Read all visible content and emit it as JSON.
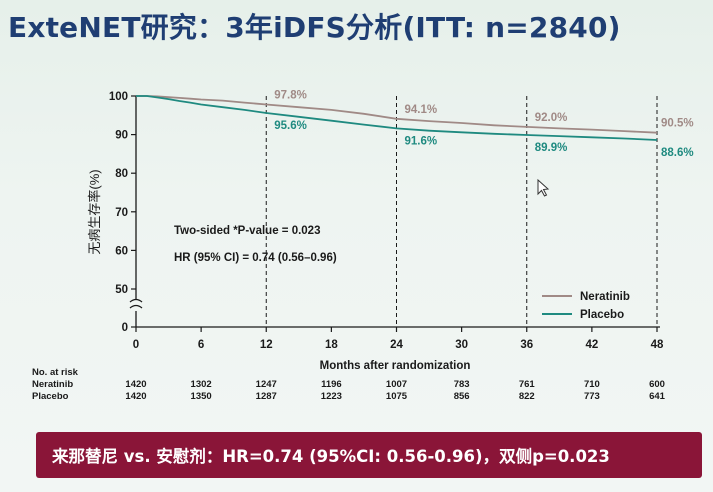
{
  "title": "ExteNET研究：3年iDFS分析(ITT: n=2840)",
  "banner": "来那替尼 vs. 安慰剂：HR=0.74 (95%CI: 0.56-0.96)，双侧p=0.023",
  "chart_data": {
    "type": "line",
    "xlabel": "Months after randomization",
    "ylabel": "无病生存率(%)",
    "x_ticks": [
      0,
      6,
      12,
      18,
      24,
      30,
      36,
      42,
      48
    ],
    "x_tick_labels": [
      "0",
      "6",
      "12",
      "18",
      "24",
      "30",
      "36",
      "42",
      "48"
    ],
    "y_ticks": [
      0,
      50,
      60,
      70,
      80,
      90,
      100
    ],
    "y_tick_labels": [
      "0",
      "50",
      "60",
      "70",
      "80",
      "90",
      "100"
    ],
    "xlim": [
      0,
      48
    ],
    "ylim": [
      0,
      100
    ],
    "y_axis_break": [
      0,
      50
    ],
    "reference_lines_x": [
      12,
      24,
      36,
      48
    ],
    "legend_position": "bottom-right",
    "series": [
      {
        "name": "Neratinib",
        "color": "#a08a86",
        "x": [
          0,
          1,
          2,
          3,
          4,
          5,
          6,
          8,
          10,
          12,
          15,
          18,
          21,
          24,
          27,
          30,
          33,
          36,
          39,
          42,
          45,
          48
        ],
        "y": [
          100,
          100,
          99.9,
          99.7,
          99.5,
          99.3,
          99.1,
          98.8,
          98.3,
          97.8,
          97.1,
          96.4,
          95.4,
          94.1,
          93.5,
          93.0,
          92.4,
          92.0,
          91.6,
          91.3,
          90.9,
          90.5
        ]
      },
      {
        "name": "Placebo",
        "color": "#1f8a80",
        "x": [
          0,
          1,
          2,
          3,
          4,
          5,
          6,
          8,
          10,
          12,
          15,
          18,
          21,
          24,
          27,
          30,
          33,
          36,
          39,
          42,
          45,
          48
        ],
        "y": [
          100,
          100,
          99.6,
          99.2,
          98.7,
          98.3,
          97.8,
          97.1,
          96.4,
          95.6,
          94.6,
          93.6,
          92.6,
          91.6,
          91.0,
          90.6,
          90.2,
          89.9,
          89.6,
          89.3,
          89.0,
          88.6
        ]
      }
    ],
    "data_labels": [
      {
        "series": "Neratinib",
        "x": 12,
        "text": "97.8%"
      },
      {
        "series": "Placebo",
        "x": 12,
        "text": "95.6%"
      },
      {
        "series": "Neratinib",
        "x": 24,
        "text": "94.1%"
      },
      {
        "series": "Placebo",
        "x": 24,
        "text": "91.6%"
      },
      {
        "series": "Neratinib",
        "x": 36,
        "text": "92.0%"
      },
      {
        "series": "Placebo",
        "x": 36,
        "text": "89.9%"
      },
      {
        "series": "Neratinib",
        "x": 48,
        "text": "90.5%"
      },
      {
        "series": "Placebo",
        "x": 48,
        "text": "88.6%"
      }
    ],
    "annotations": [
      "Two-sided *P-value = 0.023",
      "HR (95% CI) = 0.74 (0.56–0.96)"
    ],
    "risk_table": {
      "header": "No. at risk",
      "timepoints": [
        0,
        6,
        12,
        18,
        24,
        30,
        36,
        42,
        48
      ],
      "rows": [
        {
          "label": "Neratinib",
          "values": [
            1420,
            1302,
            1247,
            1196,
            1007,
            783,
            761,
            710,
            600
          ]
        },
        {
          "label": "Placebo",
          "values": [
            1420,
            1350,
            1287,
            1223,
            1075,
            856,
            822,
            773,
            641
          ]
        }
      ]
    }
  }
}
